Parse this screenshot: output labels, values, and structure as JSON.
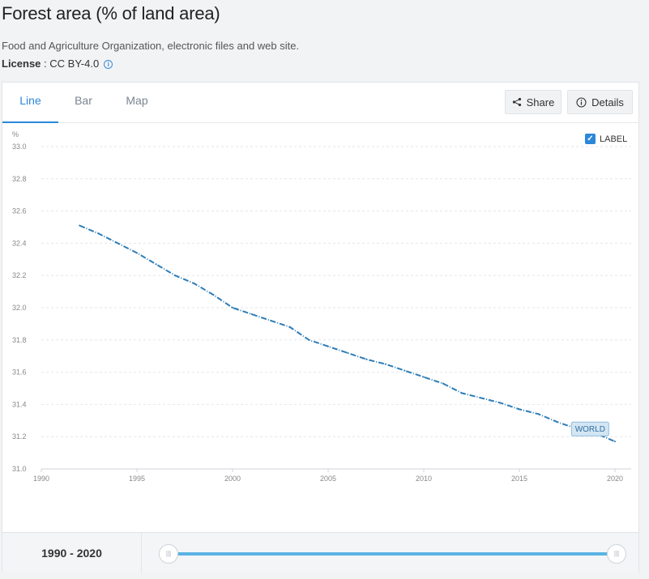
{
  "header": {
    "title": "Forest area (% of land area)",
    "source": "Food and Agriculture Organization, electronic files and web site.",
    "license_label": "License",
    "license_value": " : CC BY-4.0",
    "info_glyph": "i"
  },
  "tabs": [
    {
      "label": "Line"
    },
    {
      "label": "Bar"
    },
    {
      "label": "Map"
    }
  ],
  "toolbar": {
    "share_label": "Share",
    "details_label": "Details"
  },
  "label_toggle": {
    "text": "LABEL",
    "checked": true,
    "check_glyph": "✓"
  },
  "footer": {
    "range_text": "1990 - 2020",
    "handle_glyph": "|||"
  },
  "chart_data": {
    "type": "line",
    "title": "Forest area (% of land area)",
    "ylabel": "%",
    "xlabel": "",
    "ylim": [
      31.0,
      33.0
    ],
    "xlim": [
      1990,
      2020
    ],
    "yticks": [
      "31.0",
      "31.2",
      "31.4",
      "31.6",
      "31.8",
      "32.0",
      "32.2",
      "32.4",
      "32.6",
      "32.8",
      "33.0"
    ],
    "xticks": [
      "1990",
      "1995",
      "2000",
      "2005",
      "2010",
      "2015",
      "2020"
    ],
    "grid": true,
    "series": [
      {
        "name": "WORLD",
        "color": "#2e7db6",
        "x": [
          1992,
          1993,
          1994,
          1995,
          1996,
          1997,
          1998,
          1999,
          2000,
          2001,
          2002,
          2003,
          2004,
          2005,
          2006,
          2007,
          2008,
          2009,
          2010,
          2011,
          2012,
          2013,
          2014,
          2015,
          2016,
          2017,
          2018,
          2019,
          2020
        ],
        "values": [
          32.51,
          32.46,
          32.4,
          32.34,
          32.27,
          32.2,
          32.15,
          32.08,
          32.0,
          31.96,
          31.92,
          31.88,
          31.8,
          31.76,
          31.72,
          31.68,
          31.65,
          31.61,
          31.57,
          31.53,
          31.47,
          31.44,
          31.41,
          31.37,
          31.34,
          31.29,
          31.25,
          31.22,
          31.17
        ]
      }
    ],
    "end_label": "WORLD"
  }
}
